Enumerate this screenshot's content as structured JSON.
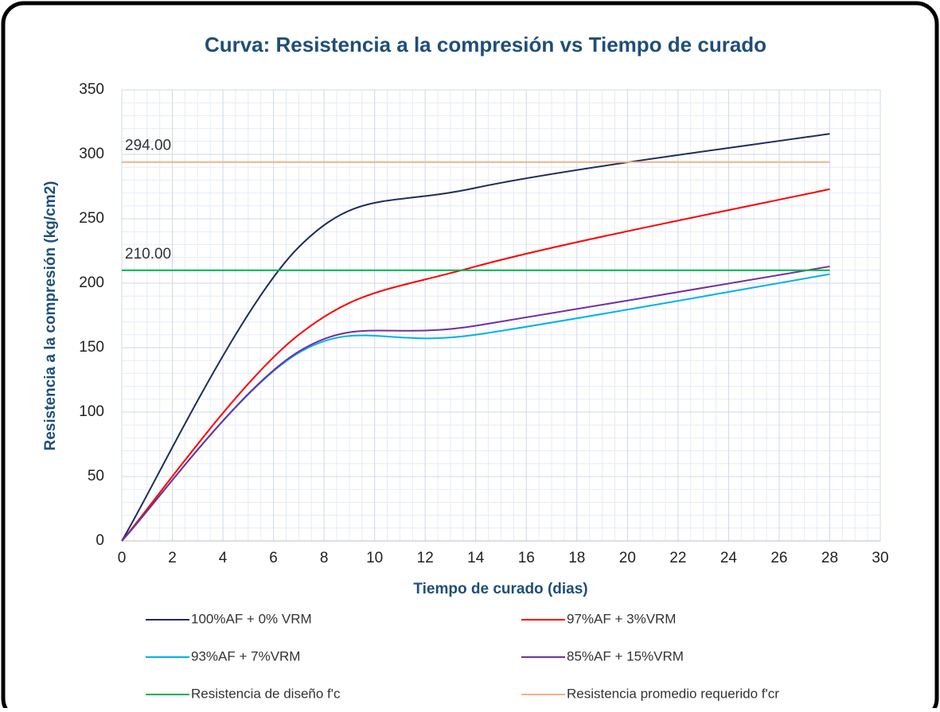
{
  "chart_data": {
    "type": "line",
    "title": "Curva: Resistencia a la compresión vs Tiempo de curado",
    "xlabel": "Tiempo de curado (dias)",
    "ylabel": "Resistencia a la compresión (kg/cm2)",
    "x": [
      0,
      7,
      14,
      28
    ],
    "series": [
      {
        "name": "100%AF + 0% VRM",
        "color": "#1f2d5c",
        "values": [
          0,
          228,
          274,
          316
        ]
      },
      {
        "name": "97%AF + 3%VRM",
        "color": "#ff0000",
        "values": [
          0,
          160,
          213,
          273
        ]
      },
      {
        "name": "93%AF + 7%VRM",
        "color": "#00b0f0",
        "values": [
          0,
          146,
          160,
          207
        ]
      },
      {
        "name": "85%AF + 15%VRM",
        "color": "#7030a0",
        "values": [
          0,
          147,
          167,
          213
        ]
      },
      {
        "name": "Resistencia de diseño f'c",
        "color": "#00b050",
        "values": [
          210,
          210,
          210,
          210
        ],
        "value_labels": [
          "210.00",
          null,
          null,
          null
        ]
      },
      {
        "name": "Resistencia promedio requerido f'cr",
        "color": "#f4b183",
        "values": [
          294,
          294,
          294,
          294
        ],
        "value_labels": [
          "294.00",
          null,
          null,
          null
        ]
      }
    ],
    "xlim": [
      0,
      30
    ],
    "xticks": [
      0,
      2,
      4,
      6,
      8,
      10,
      12,
      14,
      16,
      18,
      20,
      22,
      24,
      26,
      28,
      30
    ],
    "ylim": [
      0,
      350
    ],
    "yticks": [
      0,
      50,
      100,
      150,
      200,
      250,
      300,
      350
    ],
    "grid": true,
    "smooth": true,
    "legend": "bottom"
  }
}
